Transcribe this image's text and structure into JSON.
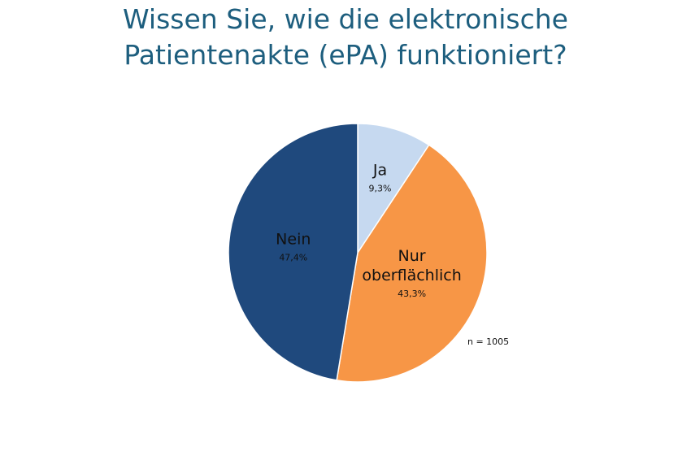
{
  "title": {
    "line1": "Wissen Sie, wie die elektronische",
    "line2": "Patientenakte (ePA) funktioniert?"
  },
  "chart_data": {
    "type": "pie",
    "title": "Wissen Sie, wie die elektronische Patientenakte (ePA) funktioniert?",
    "slices": [
      {
        "label": "Ja",
        "label_lines": [
          "Ja"
        ],
        "value": 9.3,
        "value_label": "9,3%",
        "color": "#c6d9f0"
      },
      {
        "label": "Nur oberflächlich",
        "label_lines": [
          "Nur",
          "oberflächlich"
        ],
        "value": 43.3,
        "value_label": "43,3%",
        "color": "#f79646"
      },
      {
        "label": "Nein",
        "label_lines": [
          "Nein"
        ],
        "value": 47.4,
        "value_label": "47,4%",
        "color": "#1f497d"
      }
    ],
    "start": "12 o'clock",
    "direction": "clockwise",
    "legend": "none",
    "note": "n = 1005"
  }
}
